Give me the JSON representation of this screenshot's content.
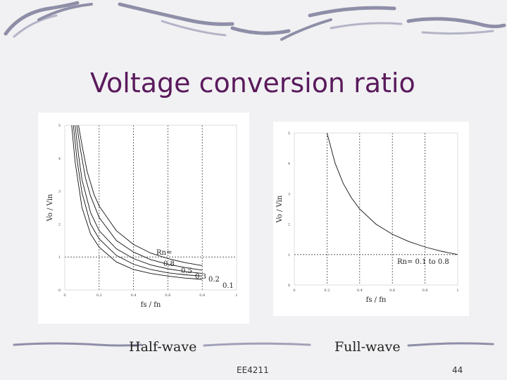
{
  "slide": {
    "title": "Voltage conversion ratio",
    "footer_center": "EE4211",
    "page_number": "44"
  },
  "captions": {
    "left": "Half-wave",
    "right": "Full-wave"
  },
  "colors": {
    "title": "#5a1a5c",
    "background": "#f1f1f3",
    "decor_stroke": "#8e8ea8"
  },
  "chart_data": [
    {
      "type": "line",
      "title": "",
      "xlabel": "fs / fn",
      "ylabel": "Vo / Vin",
      "xlim": [
        0,
        1
      ],
      "ylim": [
        0,
        5
      ],
      "xticks": [
        0,
        0.2,
        0.4,
        0.6,
        0.8,
        1
      ],
      "xtick_labels": [
        "0",
        "0.2",
        "0.4",
        "0.6",
        "0.8",
        "1"
      ],
      "yticks": [
        0,
        1,
        2,
        3,
        4,
        5
      ],
      "ytick_labels": [
        "0",
        "1",
        "2",
        "3",
        "4",
        "5"
      ],
      "grid": "dashed",
      "reference_line_y": 1,
      "annotations": [
        "Rn=",
        "0.8",
        "0.5",
        "0.3",
        "0.2",
        "0.1"
      ],
      "series": [
        {
          "name": "0.1",
          "x": [
            0.04,
            0.06,
            0.1,
            0.15,
            0.2,
            0.3,
            0.4,
            0.5,
            0.6,
            0.7,
            0.8
          ],
          "y": [
            5.0,
            3.9,
            2.5,
            1.7,
            1.3,
            0.85,
            0.62,
            0.5,
            0.42,
            0.36,
            0.32
          ]
        },
        {
          "name": "0.2",
          "x": [
            0.05,
            0.07,
            0.1,
            0.15,
            0.2,
            0.3,
            0.4,
            0.5,
            0.6,
            0.7,
            0.8
          ],
          "y": [
            5.0,
            4.0,
            2.95,
            2.0,
            1.55,
            1.05,
            0.78,
            0.62,
            0.52,
            0.46,
            0.42
          ]
        },
        {
          "name": "0.3",
          "x": [
            0.06,
            0.08,
            0.1,
            0.15,
            0.2,
            0.3,
            0.4,
            0.5,
            0.6,
            0.7,
            0.8
          ],
          "y": [
            5.0,
            4.1,
            3.35,
            2.35,
            1.8,
            1.25,
            0.95,
            0.76,
            0.64,
            0.56,
            0.5
          ]
        },
        {
          "name": "0.5",
          "x": [
            0.07,
            0.09,
            0.12,
            0.15,
            0.2,
            0.3,
            0.4,
            0.5,
            0.6,
            0.7,
            0.8
          ],
          "y": [
            5.0,
            4.3,
            3.4,
            2.85,
            2.2,
            1.5,
            1.15,
            0.92,
            0.78,
            0.68,
            0.6
          ]
        },
        {
          "name": "0.8",
          "x": [
            0.08,
            0.1,
            0.13,
            0.17,
            0.2,
            0.3,
            0.4,
            0.5,
            0.6,
            0.7,
            0.8
          ],
          "y": [
            5.0,
            4.4,
            3.6,
            2.9,
            2.55,
            1.8,
            1.38,
            1.12,
            0.95,
            0.83,
            0.74
          ]
        }
      ]
    },
    {
      "type": "line",
      "title": "",
      "xlabel": "fs / fn",
      "ylabel": "Vo / Vin",
      "xlim": [
        0,
        1
      ],
      "ylim": [
        0,
        5
      ],
      "xticks": [
        0,
        0.2,
        0.4,
        0.6,
        0.8,
        1
      ],
      "xtick_labels": [
        "0",
        "0.2",
        "0.4",
        "0.6",
        "0.8",
        "1"
      ],
      "yticks": [
        0,
        1,
        2,
        3,
        4,
        5
      ],
      "ytick_labels": [
        "0",
        "1",
        "2",
        "3",
        "4",
        "5"
      ],
      "grid": "dashed",
      "reference_line_y": 1,
      "annotations": [
        "Rn= 0.1 to 0.8"
      ],
      "series": [
        {
          "name": "Rn= 0.1 to 0.8",
          "x": [
            0.2,
            0.25,
            0.3,
            0.35,
            0.4,
            0.5,
            0.6,
            0.7,
            0.8,
            0.9,
            1.0
          ],
          "y": [
            5.0,
            4.0,
            3.33,
            2.86,
            2.5,
            2.0,
            1.67,
            1.43,
            1.25,
            1.11,
            1.0
          ]
        }
      ]
    }
  ]
}
